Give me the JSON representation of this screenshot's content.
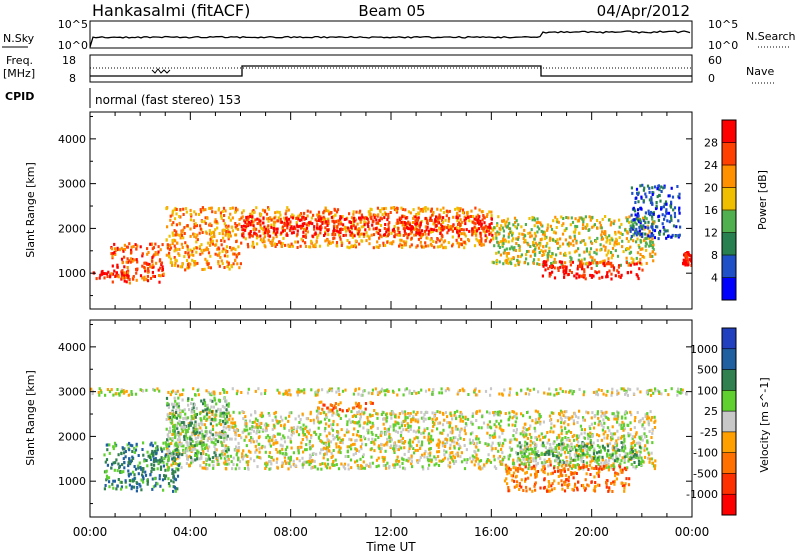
{
  "header": {
    "radar": "Hankasalmi (fitACF)",
    "beam": "Beam 05",
    "date": "04/Apr/2012"
  },
  "panels": {
    "nsky_label": "N.Sky",
    "nsky_ticks": [
      "10^5",
      "10^0"
    ],
    "nsearch_label": "N.Search",
    "nsearch_ticks": [
      "10^5",
      "10^0"
    ],
    "freq_label": "Freq.",
    "freq_unit": "[MHz]",
    "freq_ticks": [
      "18",
      "8"
    ],
    "nave_label": "Nave",
    "nave_ticks": [
      "60",
      "0"
    ],
    "cpid_label": "CPID",
    "cpid_value": "normal (fast stereo) 153"
  },
  "chart_data": [
    {
      "type": "heatmap",
      "title": "",
      "xlabel": "Time UT",
      "ylabel": "Slant Range [km]",
      "xlim": [
        0,
        24
      ],
      "x_ticks": [
        "00:00",
        "04:00",
        "08:00",
        "12:00",
        "16:00",
        "20:00",
        "00:00"
      ],
      "ylim": [
        200,
        4600
      ],
      "y_ticks": [
        1000,
        2000,
        3000,
        4000
      ],
      "colorbar": {
        "label": "Power [dB]",
        "ticks": [
          "4",
          "8",
          "12",
          "16",
          "20",
          "24",
          "28"
        ],
        "colors": [
          "#0000ff",
          "#2050c8",
          "#288050",
          "#50b050",
          "#f0c000",
          "#ff9000",
          "#ff4000",
          "#ff0000"
        ]
      },
      "bands": [
        {
          "t0": 0.1,
          "t1": 1.5,
          "r0": 900,
          "r1": 1100,
          "level": 7
        },
        {
          "t0": 0.8,
          "t1": 2.9,
          "r0": 800,
          "r1": 1700,
          "level": 6
        },
        {
          "t0": 3.0,
          "t1": 6.0,
          "r0": 1100,
          "r1": 2500,
          "level": 5
        },
        {
          "t0": 6.0,
          "t1": 16.0,
          "r0": 1600,
          "r1": 2500,
          "level": 5
        },
        {
          "t0": 6.0,
          "t1": 16.0,
          "r0": 1850,
          "r1": 2300,
          "level": 7
        },
        {
          "t0": 16.0,
          "t1": 22.5,
          "r0": 1200,
          "r1": 2300,
          "level": 4
        },
        {
          "t0": 18.0,
          "t1": 22.0,
          "r0": 900,
          "r1": 1300,
          "level": 7
        },
        {
          "t0": 21.5,
          "t1": 23.5,
          "r0": 1800,
          "r1": 3000,
          "level": 1
        },
        {
          "t0": 23.6,
          "t1": 24.0,
          "r0": 1200,
          "r1": 1500,
          "level": 7
        }
      ]
    },
    {
      "type": "heatmap",
      "title": "",
      "xlabel": "Time UT",
      "ylabel": "Slant Range [km]",
      "xlim": [
        0,
        24
      ],
      "x_ticks": [
        "00:00",
        "04:00",
        "08:00",
        "12:00",
        "16:00",
        "20:00",
        "00:00"
      ],
      "ylim": [
        200,
        4600
      ],
      "y_ticks": [
        1000,
        2000,
        3000,
        4000
      ],
      "colorbar": {
        "label": "Velocity [m s^-1]",
        "ticks": [
          "1000",
          "500",
          "100",
          "25",
          "-25",
          "-100",
          "-500",
          "-1000"
        ],
        "colors": [
          "#2040c0",
          "#2060a0",
          "#308050",
          "#60d030",
          "#c8c8c8",
          "#ffa000",
          "#ff7000",
          "#ff3000",
          "#ff0000"
        ]
      },
      "bands": [
        {
          "t0": 0.0,
          "t1": 24.0,
          "r0": 2950,
          "r1": 3100,
          "level": 4
        },
        {
          "t0": 3.0,
          "t1": 22.5,
          "r0": 1300,
          "r1": 2600,
          "level": 4
        },
        {
          "t0": 0.5,
          "t1": 3.5,
          "r0": 800,
          "r1": 1900,
          "level": 2
        },
        {
          "t0": 3.0,
          "t1": 5.5,
          "r0": 1500,
          "r1": 2900,
          "level": 3
        },
        {
          "t0": 9.0,
          "t1": 11.5,
          "r0": 2600,
          "r1": 2800,
          "level": 6
        },
        {
          "t0": 16.5,
          "t1": 21.5,
          "r0": 800,
          "r1": 1400,
          "level": 6
        },
        {
          "t0": 17.0,
          "t1": 22.0,
          "r0": 1400,
          "r1": 1900,
          "level": 3
        }
      ]
    }
  ]
}
